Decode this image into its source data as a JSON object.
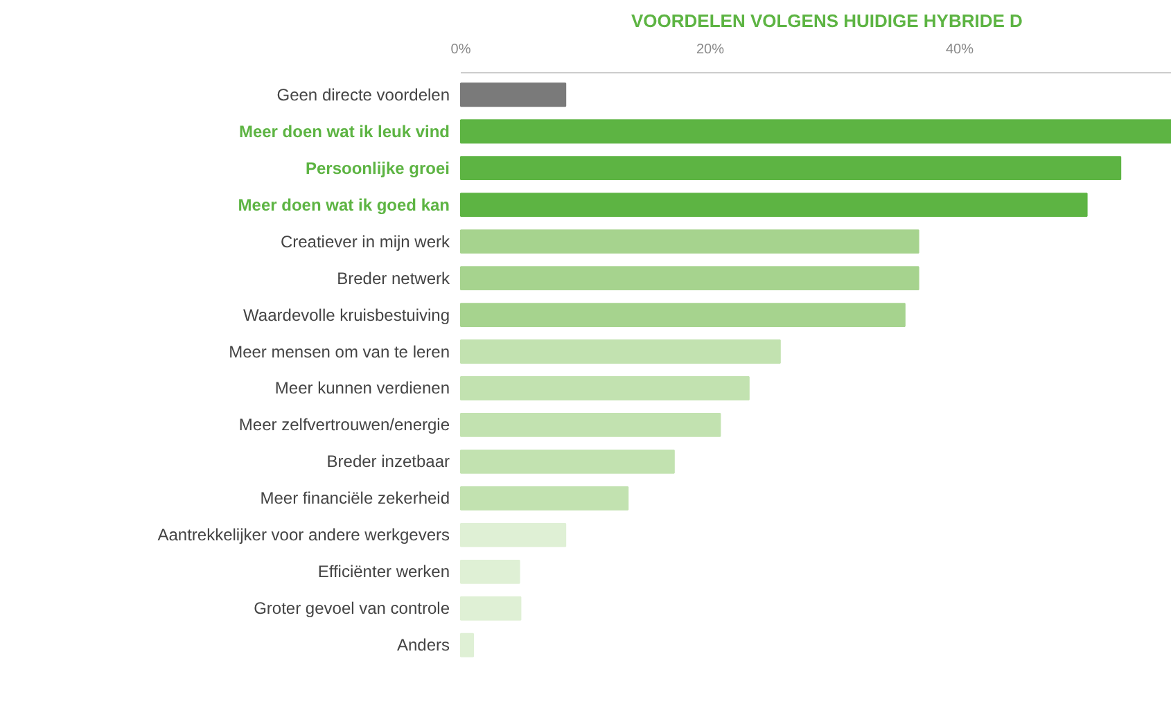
{
  "chart_data": {
    "type": "bar",
    "orientation": "horizontal",
    "title": "VOORDELEN VOLGENS HUIDIGE HYBRIDE D",
    "categories": [
      "Geen directe voordelen",
      "Meer doen wat ik leuk vind",
      "Persoonlijke groei",
      "Meer doen wat ik goed kan",
      "Creatiever in mijn werk",
      "Breder netwerk",
      "Waardevolle kruisbestuiving",
      "Meer mensen om van te leren",
      "Meer kunnen verdienen",
      "Meer zelfvertrouwen/energie",
      "Breder inzetbaar",
      "Meer financiële zekerheid",
      "Aantrekkelijker voor andere werkgevers",
      "Efficiënter werken",
      "Groter gevoel van controle",
      "Anders"
    ],
    "values": [
      8.4,
      57,
      52.9,
      50.2,
      36.7,
      36.7,
      35.6,
      25.6,
      23.1,
      20.8,
      17.1,
      13.4,
      8.4,
      4.7,
      4.8,
      1
    ],
    "colors": [
      "#7a7a7a",
      "#5db443",
      "#5db443",
      "#5db443",
      "#a6d38e",
      "#a6d38e",
      "#a6d38e",
      "#c2e2b0",
      "#c2e2b0",
      "#c2e2b0",
      "#c2e2b0",
      "#c2e2b0",
      "#dff0d5",
      "#dff0d5",
      "#dff0d5",
      "#dff0d5"
    ],
    "xlim": [
      0,
      57
    ],
    "xticks": [
      {
        "value": 0,
        "label": "0%"
      },
      {
        "value": 20,
        "label": "20%"
      },
      {
        "value": 40,
        "label": "40%"
      }
    ],
    "grid": false
  }
}
